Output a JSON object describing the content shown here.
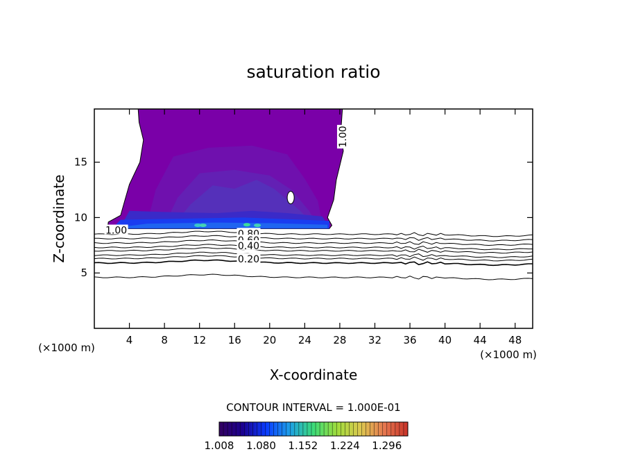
{
  "chart_data": {
    "type": "contour",
    "title": "saturation ratio",
    "xlabel": "X-coordinate",
    "ylabel": "Z-coordinate",
    "x_unit": "(×1000 m)",
    "y_unit": "(×1000 m)",
    "xlim": [
      0,
      50
    ],
    "ylim": [
      0,
      19.8
    ],
    "x_ticks": [
      4,
      8,
      12,
      16,
      20,
      24,
      28,
      32,
      36,
      40,
      44,
      48
    ],
    "y_ticks": [
      5,
      10,
      15
    ],
    "grid": false,
    "contour_interval_label": "CONTOUR INTERVAL = 1.000E-01",
    "contour_labels": [
      {
        "value": "1.00",
        "x": 2.5,
        "y": 8.8
      },
      {
        "value": "1.00",
        "x": 28.4,
        "y": 17.3
      },
      {
        "value": "0.80",
        "x": 17.6,
        "y": 8.5
      },
      {
        "value": "0.60",
        "x": 17.6,
        "y": 7.9
      },
      {
        "value": "0.40",
        "x": 17.6,
        "y": 7.4
      },
      {
        "value": "0.20",
        "x": 17.6,
        "y": 6.2
      }
    ],
    "subsaturated_contours": [
      {
        "level": 0.9,
        "z": 8.5
      },
      {
        "level": 0.8,
        "z": 8.1
      },
      {
        "level": 0.7,
        "z": 7.7
      },
      {
        "level": 0.6,
        "z": 7.3
      },
      {
        "level": 0.5,
        "z": 7.0
      },
      {
        "level": 0.4,
        "z": 6.6
      },
      {
        "level": 0.3,
        "z": 6.3
      },
      {
        "level": 0.2,
        "z": 5.9
      },
      {
        "level": 0.1,
        "z": 4.6
      }
    ],
    "supersaturated_region": {
      "x_range": [
        1.5,
        28.3
      ],
      "z_range": [
        9.0,
        19.8
      ],
      "max_value_near_z": 9.3
    },
    "colorbar": {
      "tick_labels": [
        "1.008",
        "1.080",
        "1.152",
        "1.224",
        "1.296"
      ],
      "range": [
        1.008,
        1.332
      ],
      "colors": [
        "#330060",
        "#1a0090",
        "#0a3cff",
        "#1ea0e6",
        "#3cdc78",
        "#a0dc3c",
        "#dcc850",
        "#e67850",
        "#c83228"
      ]
    }
  }
}
